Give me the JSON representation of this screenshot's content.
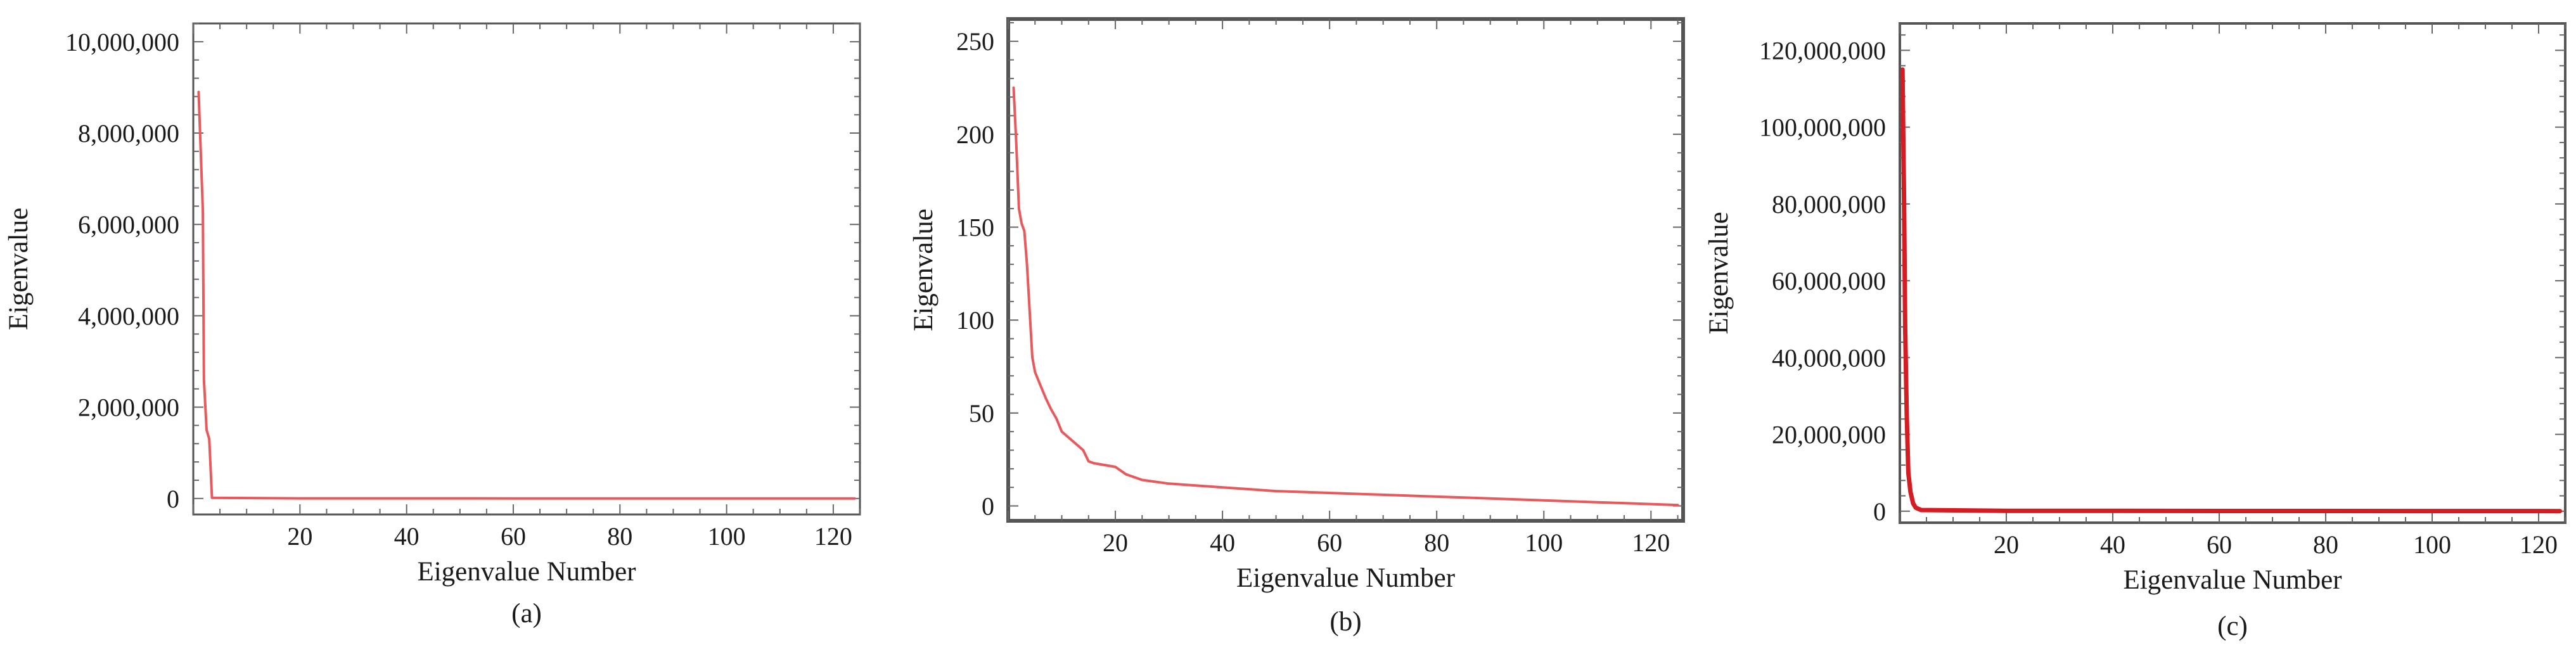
{
  "chart_data": [
    {
      "type": "line",
      "panel": "a",
      "caption": "(a)",
      "xlabel": "Eigenvalue Number",
      "ylabel": "Eigenvalue",
      "xlim": [
        0,
        125
      ],
      "ylim": [
        -350000,
        10400000
      ],
      "x_ticks": [
        20,
        40,
        60,
        80,
        100,
        120
      ],
      "x_tick_labels": [
        "20",
        "40",
        "60",
        "80",
        "100",
        "120"
      ],
      "y_ticks": [
        0,
        2000000,
        4000000,
        6000000,
        8000000,
        10000000
      ],
      "y_tick_labels": [
        "0",
        "2,000,000",
        "4,000,000",
        "6,000,000",
        "8,000,000",
        "10,000,000"
      ],
      "color": "#e8595d",
      "x": [
        1,
        1.8,
        2,
        2.5,
        3,
        3.5,
        20,
        40,
        60,
        80,
        100,
        120,
        124
      ],
      "values": [
        8900000,
        6300000,
        2600000,
        1500000,
        1300000,
        15000,
        3000,
        2000,
        1500,
        1000,
        800,
        500,
        400
      ]
    },
    {
      "type": "line",
      "panel": "b",
      "caption": "(b)",
      "xlabel": "Eigenvalue Number",
      "ylabel": "Eigenvalue",
      "xlim": [
        0,
        126
      ],
      "ylim": [
        -8,
        262
      ],
      "x_ticks": [
        20,
        40,
        60,
        80,
        100,
        120
      ],
      "x_tick_labels": [
        "20",
        "40",
        "60",
        "80",
        "100",
        "120"
      ],
      "y_ticks": [
        0,
        50,
        100,
        150,
        200,
        250
      ],
      "y_tick_labels": [
        "0",
        "50",
        "100",
        "150",
        "200",
        "250"
      ],
      "color": "#e8595d",
      "x": [
        1,
        1.5,
        2,
        2.5,
        3,
        3.5,
        4,
        4.5,
        5,
        6,
        7,
        8,
        9,
        10,
        12,
        14,
        15,
        16,
        18,
        20,
        22,
        25,
        30,
        35,
        40,
        45,
        50,
        55,
        60,
        65,
        70,
        75,
        80,
        85,
        90,
        95,
        100,
        105,
        110,
        115,
        120,
        125
      ],
      "values": [
        225,
        195,
        160,
        152,
        148,
        130,
        105,
        80,
        72,
        65,
        58,
        52,
        47,
        40,
        35,
        30,
        24,
        23,
        22,
        21,
        17,
        14,
        12,
        11,
        10,
        9,
        8,
        7.5,
        7,
        6.5,
        6,
        5.5,
        5,
        4.5,
        4,
        3.5,
        3,
        2.5,
        2,
        1.5,
        1,
        0.5
      ]
    },
    {
      "type": "line",
      "panel": "c",
      "caption": "(c)",
      "xlabel": "Eigenvalue Number",
      "ylabel": "Eigenvalue",
      "xlim": [
        0,
        125
      ],
      "ylim": [
        -3000000,
        127000000
      ],
      "x_ticks": [
        20,
        40,
        60,
        80,
        100,
        120
      ],
      "x_tick_labels": [
        "20",
        "40",
        "60",
        "80",
        "100",
        "120"
      ],
      "y_ticks": [
        0,
        20000000,
        40000000,
        60000000,
        80000000,
        100000000,
        120000000
      ],
      "y_tick_labels": [
        "0",
        "20,000,000",
        "40,000,000",
        "60,000,000",
        "80,000,000",
        "100,000,000",
        "120,000,000"
      ],
      "color": "#d41c22",
      "x": [
        0.5,
        0.8,
        1,
        1.3,
        1.6,
        2,
        2.5,
        3,
        4,
        20,
        40,
        60,
        80,
        100,
        120,
        124
      ],
      "values": [
        115000000,
        80000000,
        48000000,
        25000000,
        10000000,
        5000000,
        2000000,
        900000,
        300000,
        100000,
        80000,
        60000,
        50000,
        40000,
        30000,
        20000
      ]
    }
  ]
}
